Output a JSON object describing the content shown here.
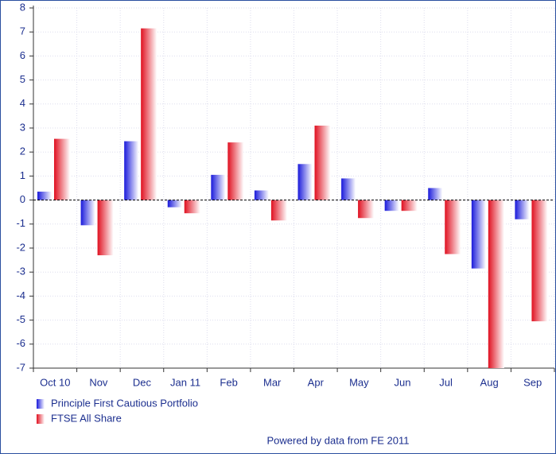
{
  "chart_data": {
    "type": "bar",
    "categories": [
      "Oct 10",
      "Nov",
      "Dec",
      "Jan 11",
      "Feb",
      "Mar",
      "Apr",
      "May",
      "Jun",
      "Jul",
      "Aug",
      "Sep"
    ],
    "series": [
      {
        "name": "Principle First Cautious Portfolio",
        "color": "#1a1adb",
        "values": [
          0.35,
          -1.05,
          2.45,
          -0.3,
          1.05,
          0.4,
          1.5,
          0.9,
          -0.45,
          0.5,
          -2.85,
          -0.8
        ]
      },
      {
        "name": "FTSE All Share",
        "color": "#e01020",
        "values": [
          2.55,
          -2.3,
          7.15,
          -0.55,
          2.4,
          -0.85,
          3.1,
          -0.75,
          -0.45,
          -2.25,
          -7,
          -5.05
        ]
      }
    ],
    "ylim": [
      -7,
      8
    ],
    "yticks": [
      -7,
      -6,
      -5,
      -4,
      -3,
      -2,
      -1,
      0,
      1,
      2,
      3,
      4,
      5,
      6,
      7,
      8
    ],
    "grid": true,
    "legend": "bottom-left",
    "footer": "Powered by data from FE 2011"
  }
}
